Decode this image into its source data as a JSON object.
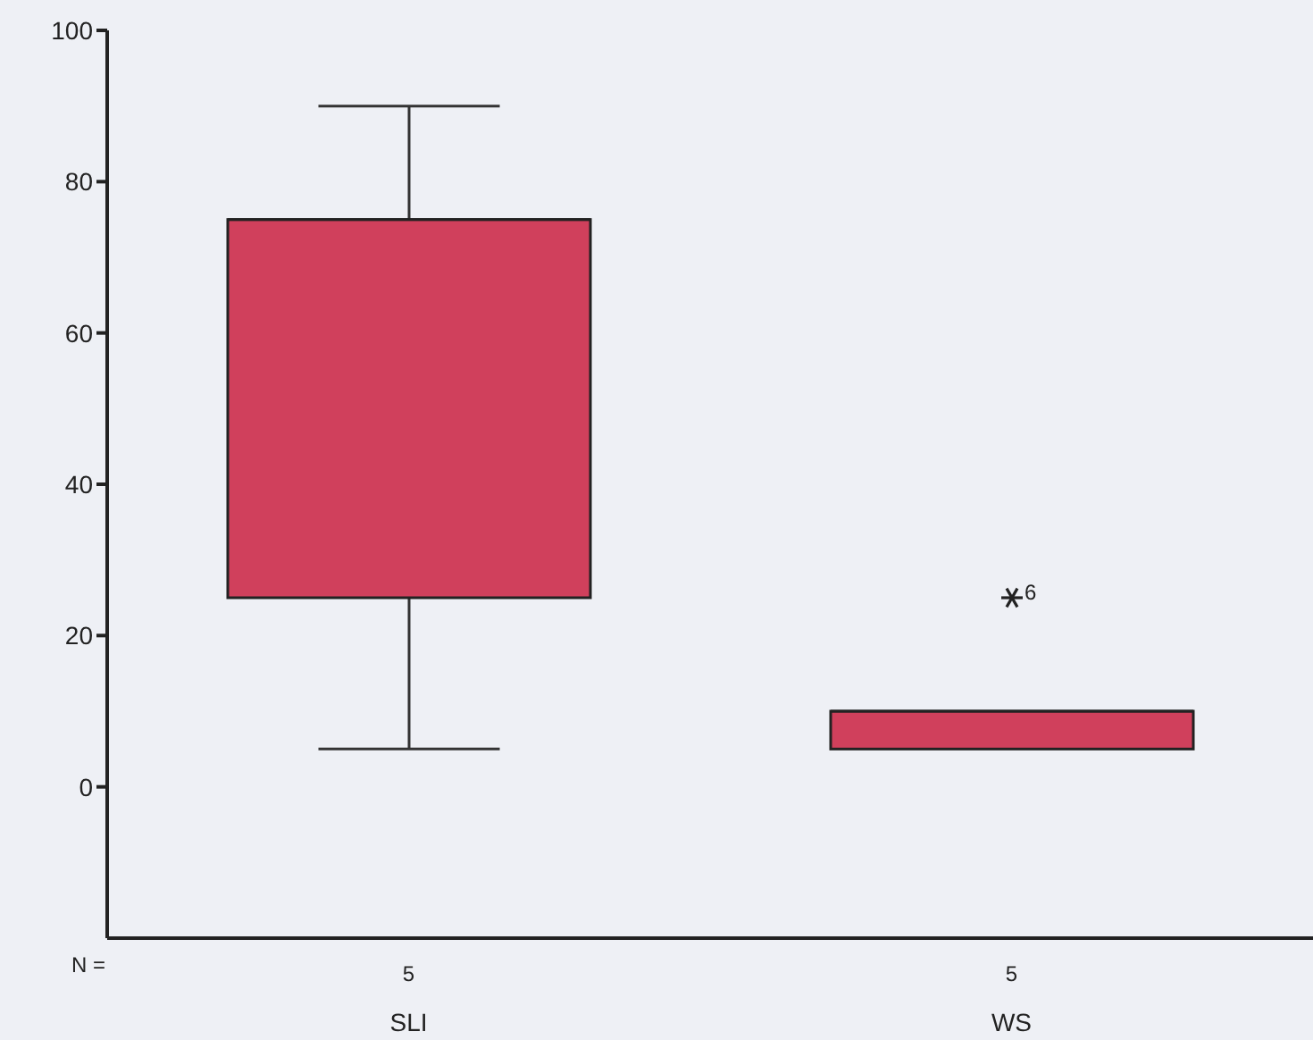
{
  "chart_data": {
    "type": "box",
    "categories": [
      "SLI",
      "WS"
    ],
    "color": "#d0405c",
    "boxes": [
      {
        "low": 5,
        "q1": 25,
        "median": 75,
        "q3": 75,
        "high": 90
      },
      {
        "low": 5,
        "q1": 5,
        "median": 10,
        "q3": 10,
        "high": 10,
        "outliers": [
          25
        ]
      }
    ],
    "ylim": [
      -20,
      100
    ],
    "yticks": [
      0,
      20,
      40,
      60,
      80,
      100
    ],
    "grid": false,
    "annotations": [
      "N =",
      "5",
      "5",
      "6"
    ]
  }
}
